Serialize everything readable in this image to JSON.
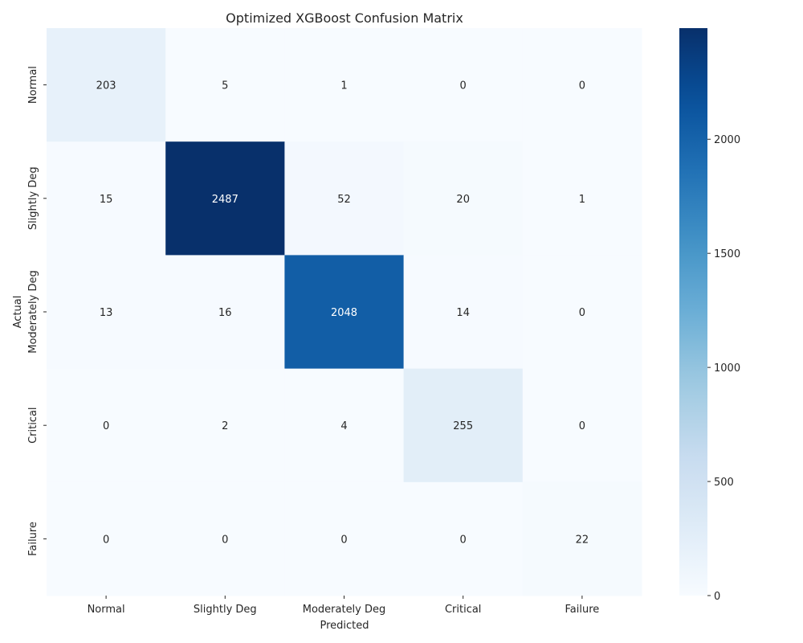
{
  "chart_data": {
    "type": "heatmap",
    "title": "Optimized XGBoost Confusion Matrix",
    "xlabel": "Predicted",
    "ylabel": "Actual",
    "x_categories": [
      "Normal",
      "Slightly Deg",
      "Moderately Deg",
      "Critical",
      "Failure"
    ],
    "y_categories": [
      "Normal",
      "Slightly Deg",
      "Moderately Deg",
      "Critical",
      "Failure"
    ],
    "values": [
      [
        203,
        5,
        1,
        0,
        0
      ],
      [
        15,
        2487,
        52,
        20,
        1
      ],
      [
        13,
        16,
        2048,
        14,
        0
      ],
      [
        0,
        2,
        4,
        255,
        0
      ],
      [
        0,
        0,
        0,
        0,
        22
      ]
    ],
    "colorbar": {
      "min": 0,
      "max": 2487,
      "ticks": [
        0,
        500,
        1000,
        1500,
        2000
      ],
      "colormap": "Blues"
    }
  }
}
